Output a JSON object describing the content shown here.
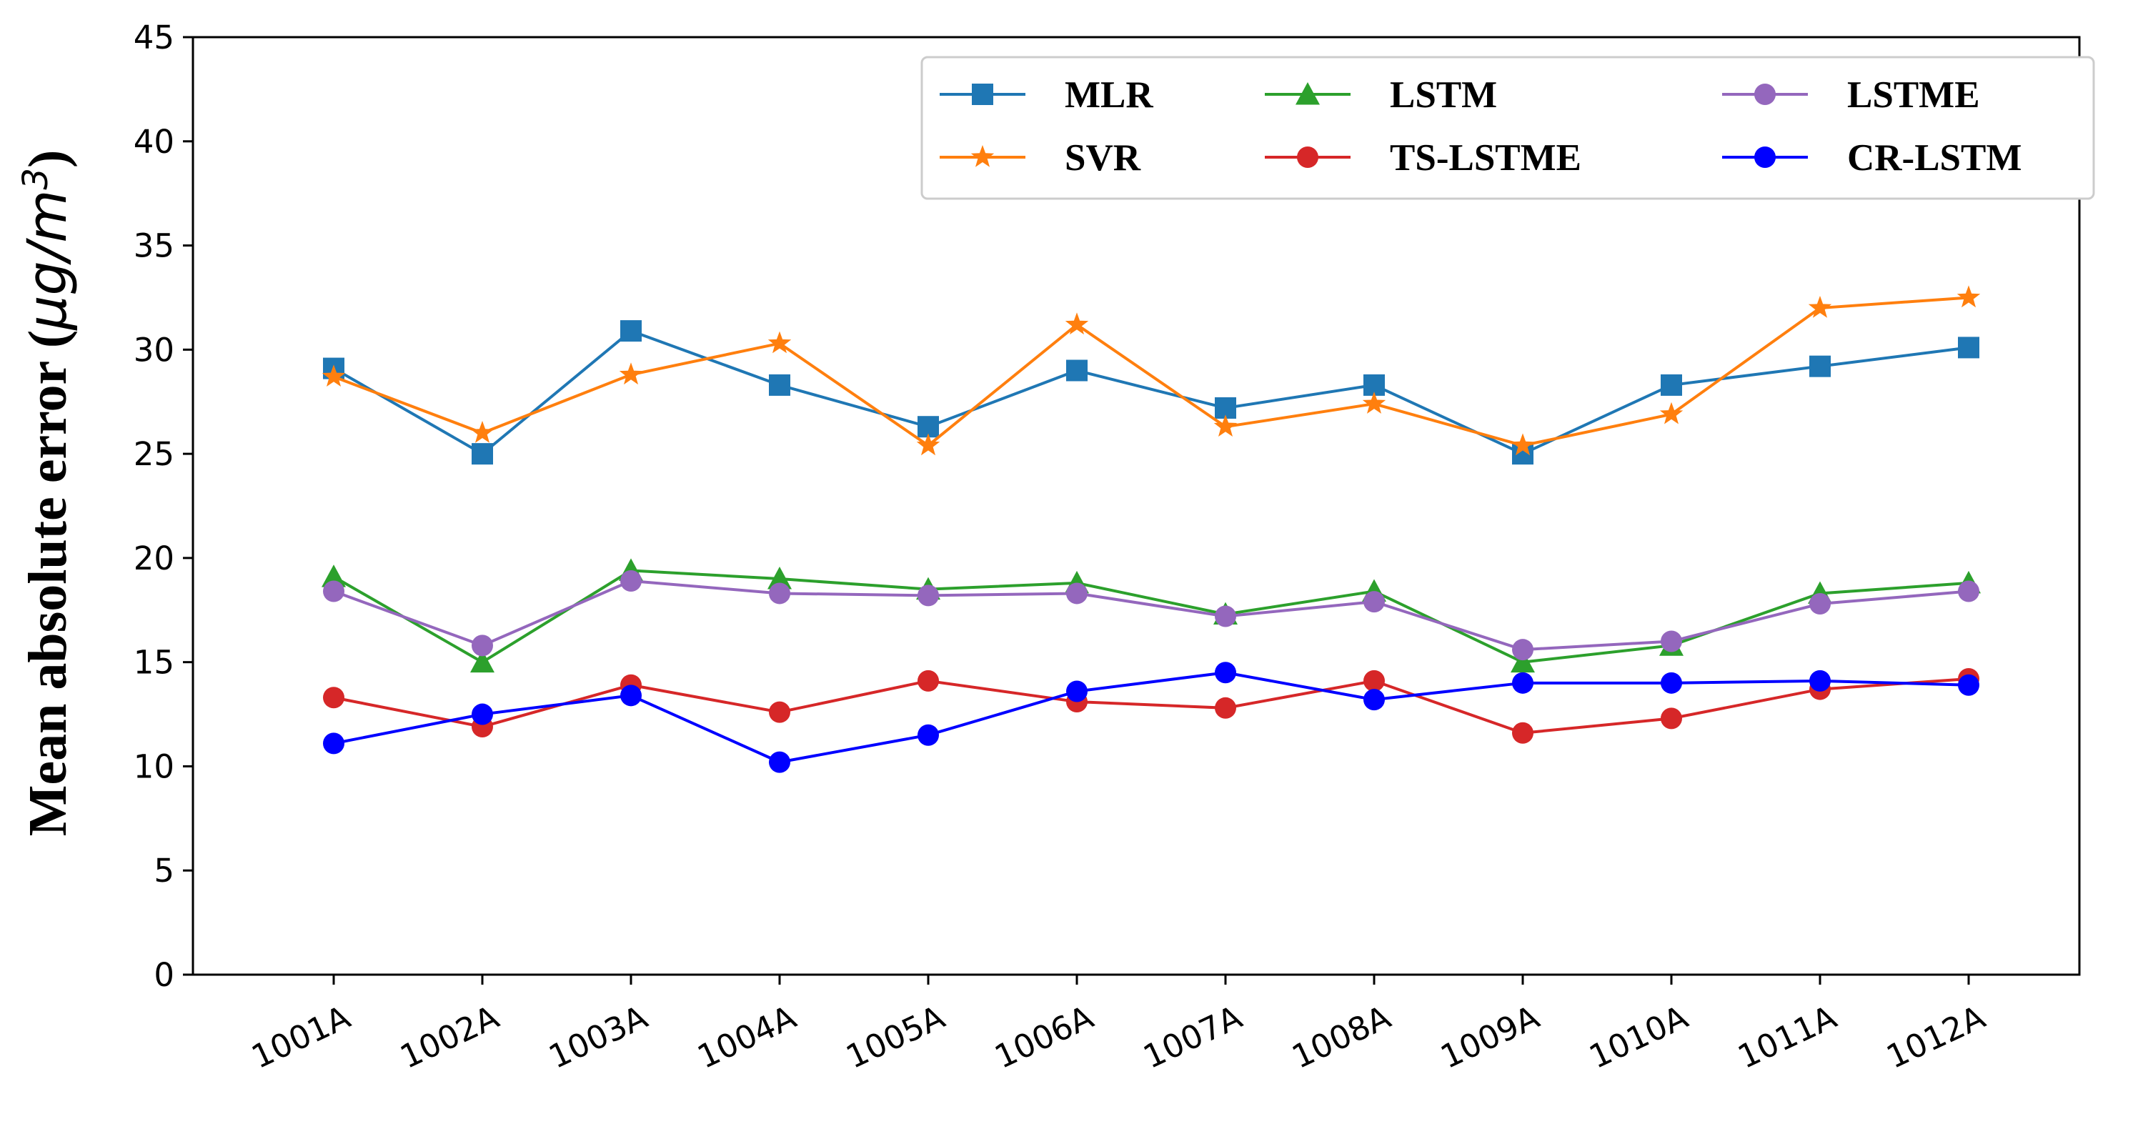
{
  "chart_data": {
    "type": "line",
    "title": "",
    "xlabel": "",
    "ylabel": "Mean absolute error (μg/m³)",
    "ylabel_text": "Mean absolute error (",
    "ylabel_unit": "μg/m",
    "ylabel_sup": "3",
    "ylabel_close": ")",
    "ylim": [
      0,
      45
    ],
    "yticks": [
      0,
      5,
      10,
      15,
      20,
      25,
      30,
      35,
      40,
      45
    ],
    "grid": false,
    "legend_position": "top-right",
    "categories": [
      "1001A",
      "1002A",
      "1003A",
      "1004A",
      "1005A",
      "1006A",
      "1007A",
      "1008A",
      "1009A",
      "1010A",
      "1011A",
      "1012A"
    ],
    "series": [
      {
        "name": "MLR",
        "color": "#1f77b4",
        "marker": "square",
        "values": [
          29.1,
          25.0,
          30.9,
          28.3,
          26.3,
          29.0,
          27.2,
          28.3,
          25.0,
          28.3,
          29.2,
          30.1
        ]
      },
      {
        "name": "SVR",
        "color": "#ff7f0e",
        "marker": "star",
        "values": [
          28.7,
          26.0,
          28.8,
          30.3,
          25.4,
          31.2,
          26.3,
          27.4,
          25.4,
          26.9,
          32.0,
          32.5
        ]
      },
      {
        "name": "LSTM",
        "color": "#2ca02c",
        "marker": "triangle",
        "values": [
          19.1,
          15.0,
          19.4,
          19.0,
          18.5,
          18.8,
          17.3,
          18.4,
          15.0,
          15.8,
          18.3,
          18.8
        ]
      },
      {
        "name": "TS-LSTME",
        "color": "#d62728",
        "marker": "circle",
        "values": [
          13.3,
          11.9,
          13.9,
          12.6,
          14.1,
          13.1,
          12.8,
          14.1,
          11.6,
          12.3,
          13.7,
          14.2
        ]
      },
      {
        "name": "LSTME",
        "color": "#9467bd",
        "marker": "circle",
        "values": [
          18.4,
          15.8,
          18.9,
          18.3,
          18.2,
          18.3,
          17.2,
          17.9,
          15.6,
          16.0,
          17.8,
          18.4
        ]
      },
      {
        "name": "CR-LSTM",
        "color": "#0000ff",
        "marker": "circle",
        "values": [
          11.1,
          12.5,
          13.4,
          10.2,
          11.5,
          13.6,
          14.5,
          13.2,
          14.0,
          14.0,
          14.1,
          13.9
        ]
      }
    ],
    "legend_order": [
      "MLR",
      "LSTM",
      "LSTME",
      "SVR",
      "TS-LSTME",
      "CR-LSTM"
    ]
  }
}
